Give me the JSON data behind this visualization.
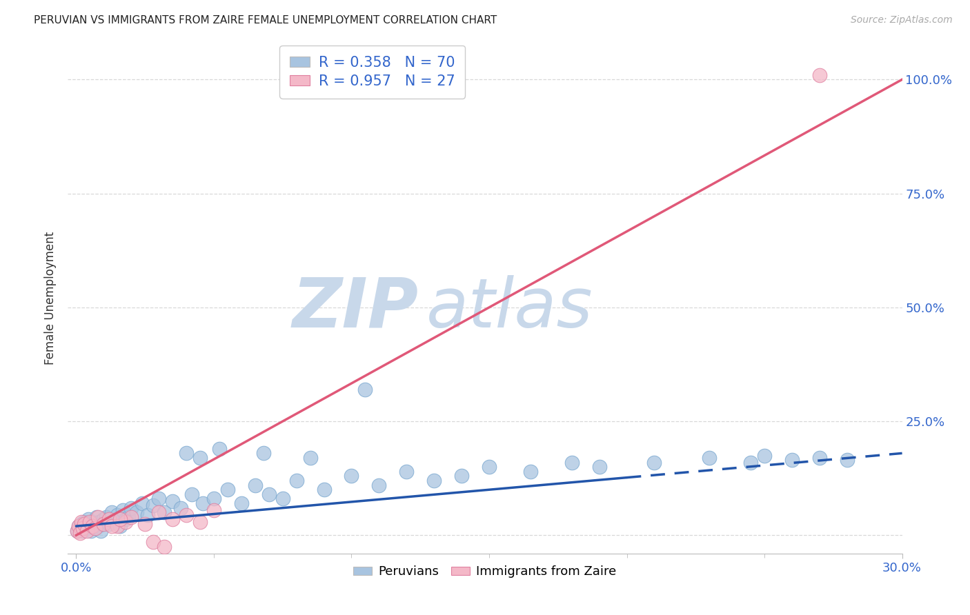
{
  "title": "PERUVIAN VS IMMIGRANTS FROM ZAIRE FEMALE UNEMPLOYMENT CORRELATION CHART",
  "source": "Source: ZipAtlas.com",
  "xlabel_ticks": [
    "0.0%",
    "30.0%"
  ],
  "xlabel_vals": [
    0,
    30
  ],
  "ylabel_ticks": [
    "25.0%",
    "50.0%",
    "75.0%",
    "100.0%"
  ],
  "ylabel_vals": [
    25,
    50,
    75,
    100
  ],
  "ylabel_label": "Female Unemployment",
  "xlim": [
    -0.3,
    30
  ],
  "ylim": [
    -4,
    108
  ],
  "blue_color": "#a8c4e0",
  "blue_edge_color": "#7aa8d0",
  "blue_line_color": "#2255aa",
  "pink_color": "#f4b8c8",
  "pink_edge_color": "#e080a0",
  "pink_line_color": "#e05878",
  "legend_R1": "R = 0.358",
  "legend_N1": "N = 70",
  "legend_R2": "R = 0.957",
  "legend_N2": "N = 27",
  "watermark_zip": "ZIP",
  "watermark_atlas": "atlas",
  "watermark_color": "#c8d8ea",
  "bg_color": "#ffffff",
  "grid_color": "#d8d8d8",
  "title_color": "#222222",
  "source_color": "#aaaaaa",
  "tick_color": "#3366cc",
  "ylabel_color": "#333333",
  "blue_trend_x0": 0,
  "blue_trend_y0": 2.0,
  "blue_trend_x1": 30,
  "blue_trend_y1": 18.0,
  "blue_dash_start_x": 20,
  "pink_trend_x0": 0,
  "pink_trend_y0": 0,
  "pink_trend_x1": 30,
  "pink_trend_y1": 100,
  "peru_scatter_x": [
    0.05,
    0.1,
    0.15,
    0.2,
    0.25,
    0.3,
    0.35,
    0.4,
    0.45,
    0.5,
    0.55,
    0.6,
    0.65,
    0.7,
    0.75,
    0.8,
    0.85,
    0.9,
    0.95,
    1.0,
    1.1,
    1.2,
    1.3,
    1.4,
    1.5,
    1.6,
    1.7,
    1.8,
    1.9,
    2.0,
    2.2,
    2.4,
    2.6,
    2.8,
    3.0,
    3.2,
    3.5,
    3.8,
    4.2,
    4.6,
    5.0,
    5.5,
    6.0,
    6.5,
    7.0,
    7.5,
    8.0,
    9.0,
    10.0,
    10.5,
    11.0,
    12.0,
    13.0,
    14.0,
    15.0,
    16.5,
    18.0,
    19.0,
    21.0,
    23.0,
    24.5,
    25.0,
    26.0,
    27.0,
    28.0,
    4.0,
    4.5,
    5.2,
    6.8,
    8.5
  ],
  "peru_scatter_y": [
    1.0,
    2.0,
    1.5,
    2.5,
    1.0,
    3.0,
    2.0,
    1.5,
    3.5,
    2.0,
    1.0,
    3.0,
    2.5,
    1.5,
    4.0,
    2.0,
    3.0,
    1.0,
    2.5,
    3.5,
    4.0,
    2.5,
    5.0,
    3.0,
    4.5,
    2.0,
    5.5,
    3.5,
    4.0,
    6.0,
    5.0,
    7.0,
    4.5,
    6.5,
    8.0,
    5.0,
    7.5,
    6.0,
    9.0,
    7.0,
    8.0,
    10.0,
    7.0,
    11.0,
    9.0,
    8.0,
    12.0,
    10.0,
    13.0,
    32.0,
    11.0,
    14.0,
    12.0,
    13.0,
    15.0,
    14.0,
    16.0,
    15.0,
    16.0,
    17.0,
    16.0,
    17.5,
    16.5,
    17.0,
    16.5,
    18.0,
    17.0,
    19.0,
    18.0,
    17.0
  ],
  "zaire_scatter_x": [
    0.05,
    0.1,
    0.15,
    0.2,
    0.25,
    0.3,
    0.4,
    0.5,
    0.6,
    0.7,
    0.8,
    1.0,
    1.2,
    1.5,
    1.8,
    2.0,
    2.5,
    3.0,
    3.5,
    4.0,
    4.5,
    5.0,
    2.8,
    3.2,
    1.3,
    27.0,
    1.6
  ],
  "zaire_scatter_y": [
    1.0,
    2.0,
    0.5,
    3.0,
    1.5,
    2.5,
    1.0,
    3.0,
    2.0,
    1.5,
    4.0,
    2.5,
    3.5,
    2.0,
    3.0,
    4.0,
    2.5,
    5.0,
    3.5,
    4.5,
    3.0,
    5.5,
    -1.5,
    -2.5,
    2.0,
    101.0,
    3.5
  ]
}
